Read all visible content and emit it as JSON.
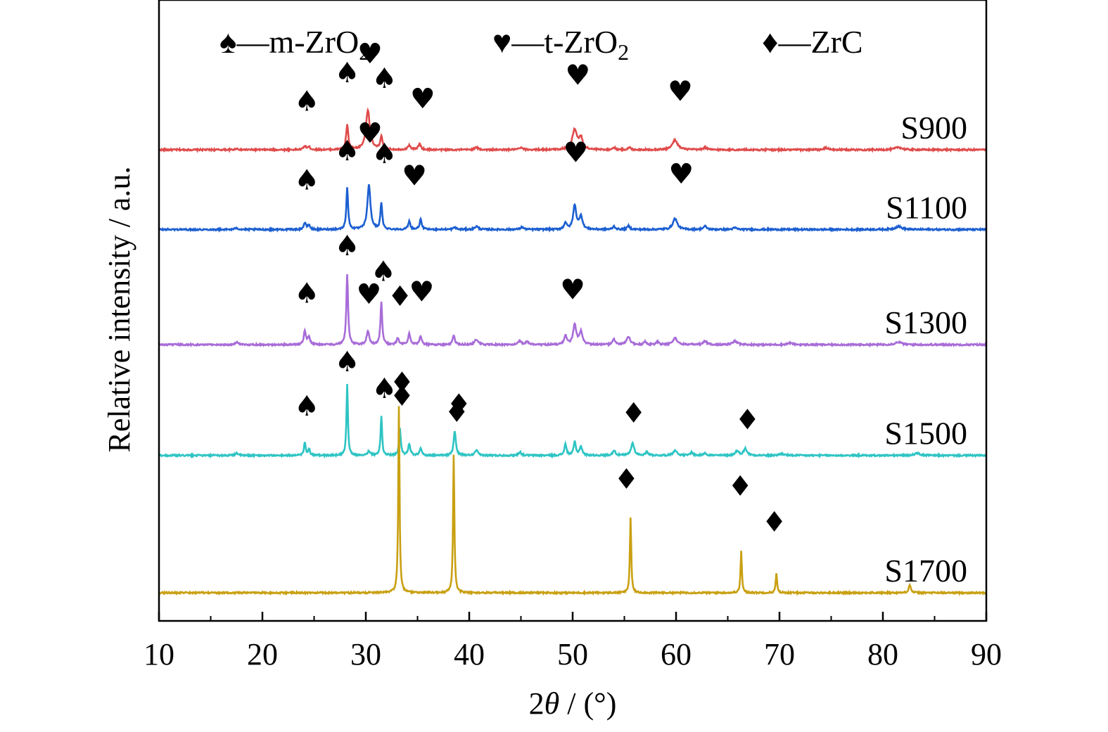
{
  "chart_data": {
    "type": "line",
    "xlabel_prefix": "2",
    "xlabel_symbol": "θ",
    "xlabel_suffix": " / (°)",
    "ylabel": "Relative intensity / a.u.",
    "xlim": [
      10,
      90
    ],
    "xticks": [
      "10",
      "20",
      "30",
      "40",
      "50",
      "60",
      "70",
      "80",
      "90"
    ],
    "grid": false,
    "y_ticks_shown": false,
    "legend": {
      "placement": "top",
      "entries": [
        {
          "symbol": "♠",
          "dash": "—",
          "text": "m-ZrO",
          "sub": "2"
        },
        {
          "symbol": "♥",
          "dash": "—",
          "text": "t-ZrO",
          "sub": "2"
        },
        {
          "symbol": "♦",
          "dash": "—",
          "text": "ZrC",
          "sub": ""
        }
      ]
    },
    "series": [
      {
        "name": "S900",
        "color": "#e04b4b",
        "baseline": 10.0,
        "peaks": [
          [
            17.5,
            0.03,
            0.3
          ],
          [
            24.1,
            0.08,
            0.3
          ],
          [
            24.5,
            0.06,
            0.3
          ],
          [
            28.2,
            0.55,
            0.25
          ],
          [
            30.2,
            0.9,
            0.45
          ],
          [
            31.5,
            0.3,
            0.25
          ],
          [
            34.2,
            0.1,
            0.3
          ],
          [
            35.2,
            0.13,
            0.3
          ],
          [
            40.7,
            0.05,
            0.4
          ],
          [
            45.0,
            0.04,
            0.5
          ],
          [
            50.2,
            0.45,
            0.55
          ],
          [
            50.8,
            0.25,
            0.4
          ],
          [
            54.0,
            0.05,
            0.3
          ],
          [
            55.5,
            0.05,
            0.3
          ],
          [
            59.9,
            0.22,
            0.6
          ],
          [
            62.8,
            0.05,
            0.4
          ],
          [
            74.5,
            0.04,
            0.5
          ],
          [
            81.5,
            0.06,
            0.7
          ]
        ],
        "markers": [
          {
            "symbol": "♠",
            "x": 24.3,
            "y": 10.88
          },
          {
            "symbol": "♠",
            "x": 28.2,
            "y": 11.52
          },
          {
            "symbol": "♥",
            "x": 30.4,
            "y": 11.95
          },
          {
            "symbol": "♠",
            "x": 31.8,
            "y": 11.4
          },
          {
            "symbol": "♥",
            "x": 35.5,
            "y": 10.94
          },
          {
            "symbol": "♥",
            "x": 50.5,
            "y": 11.47
          },
          {
            "symbol": "♥",
            "x": 60.4,
            "y": 11.1
          }
        ]
      },
      {
        "name": "S1100",
        "color": "#1c5fd1",
        "baseline": 8.2,
        "peaks": [
          [
            17.5,
            0.04,
            0.3
          ],
          [
            24.1,
            0.15,
            0.25
          ],
          [
            24.5,
            0.1,
            0.25
          ],
          [
            28.2,
            0.95,
            0.2
          ],
          [
            30.3,
            1.0,
            0.35
          ],
          [
            31.5,
            0.6,
            0.2
          ],
          [
            34.2,
            0.18,
            0.25
          ],
          [
            35.3,
            0.22,
            0.25
          ],
          [
            38.6,
            0.05,
            0.3
          ],
          [
            40.7,
            0.07,
            0.4
          ],
          [
            45.1,
            0.05,
            0.4
          ],
          [
            49.3,
            0.15,
            0.3
          ],
          [
            50.2,
            0.55,
            0.35
          ],
          [
            50.8,
            0.3,
            0.35
          ],
          [
            54.0,
            0.07,
            0.3
          ],
          [
            55.4,
            0.08,
            0.3
          ],
          [
            59.9,
            0.25,
            0.5
          ],
          [
            62.8,
            0.07,
            0.4
          ],
          [
            65.7,
            0.04,
            0.4
          ],
          [
            81.5,
            0.07,
            0.7
          ]
        ],
        "markers": [
          {
            "symbol": "♠",
            "x": 24.3,
            "y": 9.1
          },
          {
            "symbol": "♠",
            "x": 28.2,
            "y": 9.76
          },
          {
            "symbol": "♥",
            "x": 30.4,
            "y": 10.16
          },
          {
            "symbol": "♠",
            "x": 31.8,
            "y": 9.7
          },
          {
            "symbol": "♥",
            "x": 34.7,
            "y": 9.2
          },
          {
            "symbol": "♥",
            "x": 50.3,
            "y": 9.72
          },
          {
            "symbol": "♥",
            "x": 60.5,
            "y": 9.24
          }
        ]
      },
      {
        "name": "S1300",
        "color": "#a86cd8",
        "baseline": 5.6,
        "peaks": [
          [
            17.5,
            0.06,
            0.3
          ],
          [
            24.1,
            0.3,
            0.25
          ],
          [
            24.5,
            0.18,
            0.25
          ],
          [
            28.2,
            1.6,
            0.2
          ],
          [
            30.2,
            0.3,
            0.3
          ],
          [
            31.5,
            0.95,
            0.2
          ],
          [
            33.1,
            0.15,
            0.25
          ],
          [
            34.2,
            0.25,
            0.25
          ],
          [
            35.3,
            0.2,
            0.25
          ],
          [
            38.5,
            0.2,
            0.25
          ],
          [
            40.7,
            0.12,
            0.4
          ],
          [
            44.9,
            0.08,
            0.35
          ],
          [
            45.6,
            0.07,
            0.35
          ],
          [
            49.3,
            0.2,
            0.3
          ],
          [
            50.2,
            0.45,
            0.35
          ],
          [
            50.8,
            0.28,
            0.35
          ],
          [
            54.0,
            0.12,
            0.3
          ],
          [
            55.4,
            0.18,
            0.4
          ],
          [
            57.0,
            0.06,
            0.3
          ],
          [
            58.2,
            0.06,
            0.3
          ],
          [
            59.9,
            0.15,
            0.5
          ],
          [
            62.8,
            0.08,
            0.4
          ],
          [
            65.7,
            0.08,
            0.5
          ],
          [
            71.0,
            0.04,
            0.5
          ],
          [
            81.5,
            0.06,
            0.7
          ]
        ],
        "markers": [
          {
            "symbol": "♠",
            "x": 24.3,
            "y": 6.55
          },
          {
            "symbol": "♠",
            "x": 28.2,
            "y": 7.62
          },
          {
            "symbol": "♥",
            "x": 30.3,
            "y": 6.52
          },
          {
            "symbol": "♠",
            "x": 31.7,
            "y": 7.04
          },
          {
            "symbol": "♦",
            "x": 33.3,
            "y": 6.48
          },
          {
            "symbol": "♥",
            "x": 35.4,
            "y": 6.58
          },
          {
            "symbol": "♥",
            "x": 50.0,
            "y": 6.63
          }
        ]
      },
      {
        "name": "S1500",
        "color": "#2ec4c4",
        "baseline": 3.1,
        "peaks": [
          [
            17.5,
            0.06,
            0.3
          ],
          [
            24.1,
            0.28,
            0.2
          ],
          [
            24.5,
            0.15,
            0.2
          ],
          [
            28.2,
            1.6,
            0.17
          ],
          [
            30.3,
            0.1,
            0.3
          ],
          [
            31.5,
            0.9,
            0.17
          ],
          [
            33.3,
            0.6,
            0.2
          ],
          [
            34.2,
            0.25,
            0.25
          ],
          [
            35.3,
            0.15,
            0.25
          ],
          [
            38.6,
            0.55,
            0.25
          ],
          [
            40.7,
            0.12,
            0.3
          ],
          [
            44.9,
            0.08,
            0.3
          ],
          [
            49.3,
            0.25,
            0.25
          ],
          [
            50.2,
            0.3,
            0.25
          ],
          [
            50.8,
            0.2,
            0.3
          ],
          [
            54.0,
            0.12,
            0.3
          ],
          [
            55.8,
            0.28,
            0.35
          ],
          [
            57.2,
            0.08,
            0.3
          ],
          [
            59.9,
            0.12,
            0.4
          ],
          [
            61.5,
            0.07,
            0.3
          ],
          [
            62.8,
            0.06,
            0.3
          ],
          [
            65.9,
            0.1,
            0.4
          ],
          [
            66.7,
            0.15,
            0.4
          ],
          [
            70.2,
            0.04,
            0.5
          ],
          [
            83.3,
            0.05,
            0.6
          ]
        ],
        "markers": [
          {
            "symbol": "♠",
            "x": 24.3,
            "y": 4.0
          },
          {
            "symbol": "♠",
            "x": 28.2,
            "y": 5.0
          },
          {
            "symbol": "♠",
            "x": 31.8,
            "y": 4.4
          },
          {
            "symbol": "♦",
            "x": 33.5,
            "y": 4.22
          },
          {
            "symbol": "♦",
            "x": 39.0,
            "y": 4.04
          },
          {
            "symbol": "♦",
            "x": 55.9,
            "y": 3.84
          },
          {
            "symbol": "♦",
            "x": 66.9,
            "y": 3.69
          }
        ]
      },
      {
        "name": "S1700",
        "color": "#c9a012",
        "baseline": 0.0,
        "peaks": [
          [
            33.2,
            4.2,
            0.15
          ],
          [
            38.5,
            3.1,
            0.15
          ],
          [
            55.6,
            1.7,
            0.15
          ],
          [
            66.3,
            0.95,
            0.15
          ],
          [
            69.7,
            0.45,
            0.15
          ],
          [
            82.6,
            0.18,
            0.25
          ]
        ],
        "markers": [
          {
            "symbol": "♦",
            "x": 33.5,
            "y": 4.53
          },
          {
            "symbol": "♦",
            "x": 38.8,
            "y": 3.86
          },
          {
            "symbol": "♦",
            "x": 55.2,
            "y": 2.35
          },
          {
            "symbol": "♦",
            "x": 66.2,
            "y": 2.19
          },
          {
            "symbol": "♦",
            "x": 69.5,
            "y": 1.38
          }
        ]
      }
    ]
  }
}
